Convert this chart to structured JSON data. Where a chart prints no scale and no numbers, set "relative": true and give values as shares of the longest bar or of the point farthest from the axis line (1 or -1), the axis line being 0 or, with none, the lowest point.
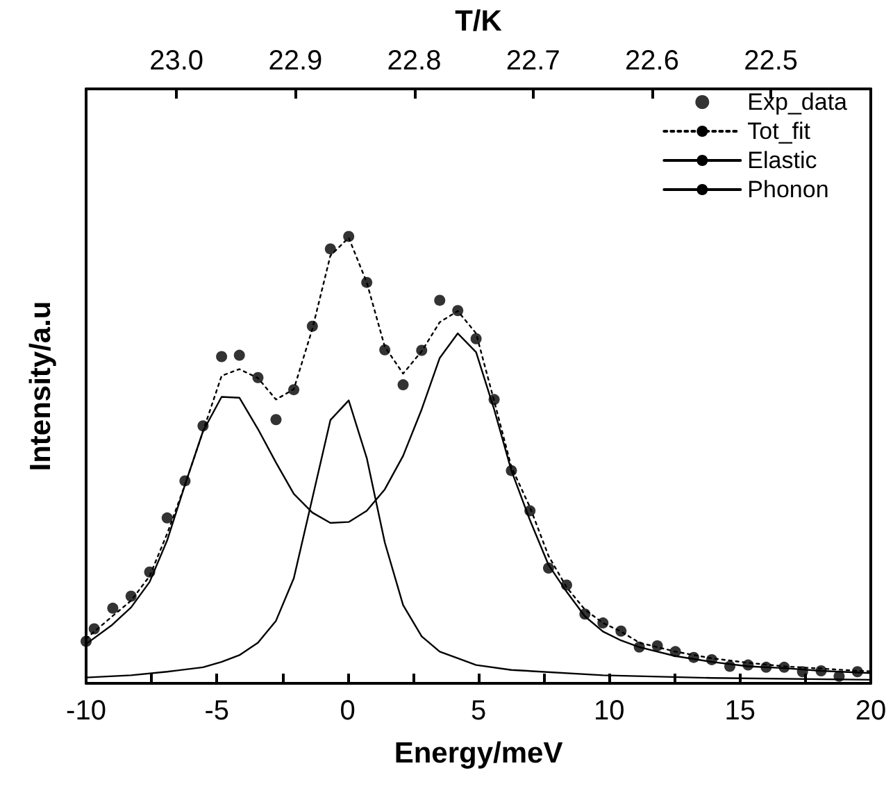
{
  "chart_data": {
    "type": "line",
    "xlabel": "Energy/meV",
    "ylabel": "Intensity/a.u",
    "x2label": "T/K",
    "relative": true,
    "legend": "top right",
    "grid": false,
    "tick_labels": "x",
    "xlim": [
      -10,
      20
    ],
    "xticks": [
      -10,
      {
        "value": -7.5,
        "label": null
      },
      -5,
      {
        "value": -2.5,
        "label": null
      },
      0,
      {
        "value": 2.5,
        "label": null
      },
      5,
      {
        "value": 7.5,
        "label": null
      },
      10,
      {
        "value": 12.5,
        "label": null
      },
      15,
      {
        "value": 17.5,
        "label": null
      },
      20
    ],
    "x2lim": [
      23.076,
      22.416
    ],
    "x2ticks": [
      {
        "value": 23.0,
        "label": "23.0"
      },
      {
        "value": 22.9,
        "label": "22.9"
      },
      {
        "value": 22.8,
        "label": "22.8"
      },
      {
        "value": 22.7,
        "label": "22.7"
      },
      {
        "value": 22.6,
        "label": "22.6"
      },
      {
        "value": 22.5,
        "label": "22.5"
      }
    ],
    "series": [
      {
        "name": "Exp_data",
        "type": "scatter",
        "marker": "circle",
        "color": "#000000",
        "x": [
          -10.0,
          -9.69,
          -8.98,
          -8.28,
          -7.57,
          -6.9,
          -6.22,
          -5.53,
          -4.82,
          -4.14,
          -3.43,
          -2.74,
          -2.06,
          -1.35,
          -0.66,
          0.04,
          0.73,
          1.42,
          2.12,
          2.83,
          3.52,
          4.21,
          4.91,
          5.6,
          6.26,
          6.97,
          7.68,
          8.37,
          9.07,
          9.76,
          10.45,
          11.15,
          11.84,
          12.53,
          13.23,
          13.92,
          14.61,
          15.31,
          16.0,
          16.69,
          17.39,
          18.1,
          18.79,
          19.49
        ],
        "values": [
          0.094,
          0.122,
          0.168,
          0.195,
          0.249,
          0.37,
          0.453,
          0.576,
          0.731,
          0.734,
          0.684,
          0.59,
          0.657,
          0.799,
          0.972,
          1.0,
          0.897,
          0.746,
          0.668,
          0.745,
          0.857,
          0.834,
          0.771,
          0.635,
          0.476,
          0.386,
          0.258,
          0.22,
          0.155,
          0.135,
          0.117,
          0.081,
          0.084,
          0.071,
          0.058,
          0.053,
          0.038,
          0.041,
          0.036,
          0.036,
          0.026,
          0.028,
          0.016,
          0.026
        ]
      },
      {
        "name": "Tot_fit",
        "type": "line",
        "marker": "none",
        "line_style": "dotted",
        "color": "#000000",
        "x": [
          -10,
          -9,
          -8.28,
          -7.57,
          -6.9,
          -6.22,
          -5.53,
          -4.82,
          -4.14,
          -3.43,
          -2.74,
          -2.06,
          -1.35,
          -0.66,
          0.04,
          0.73,
          1.42,
          2.12,
          2.83,
          3.52,
          4.21,
          4.91,
          5.6,
          6.26,
          6.97,
          7.68,
          8.37,
          9.07,
          9.76,
          10.45,
          11.15,
          12.53,
          13.92,
          15.31,
          16.69,
          18.1,
          19.49,
          20
        ],
        "values": [
          0.1,
          0.15,
          0.185,
          0.24,
          0.335,
          0.444,
          0.564,
          0.688,
          0.703,
          0.683,
          0.635,
          0.658,
          0.793,
          0.957,
          0.997,
          0.897,
          0.753,
          0.693,
          0.743,
          0.808,
          0.833,
          0.783,
          0.632,
          0.484,
          0.394,
          0.285,
          0.215,
          0.165,
          0.135,
          0.116,
          0.091,
          0.071,
          0.056,
          0.046,
          0.038,
          0.033,
          0.028,
          0.027
        ]
      },
      {
        "name": "Elastic",
        "type": "line",
        "marker": "none",
        "line_style": "solid",
        "color": "#000000",
        "x": [
          -10,
          -8.28,
          -6.9,
          -5.53,
          -4.82,
          -4.14,
          -3.43,
          -2.74,
          -2.06,
          -1.35,
          -0.66,
          0.04,
          0.73,
          1.42,
          2.12,
          2.83,
          3.52,
          4.21,
          4.91,
          6.26,
          9.76,
          13.92,
          20
        ],
        "values": [
          0.013,
          0.018,
          0.026,
          0.036,
          0.048,
          0.063,
          0.091,
          0.14,
          0.235,
          0.414,
          0.589,
          0.633,
          0.504,
          0.315,
          0.175,
          0.105,
          0.071,
          0.056,
          0.041,
          0.03,
          0.018,
          0.012,
          0.008
        ]
      },
      {
        "name": "Phonon",
        "type": "line",
        "marker": "none",
        "line_style": "solid",
        "color": "#000000",
        "x": [
          -10,
          -9,
          -8.28,
          -7.57,
          -6.9,
          -6.22,
          -5.53,
          -4.82,
          -4.14,
          -3.43,
          -2.74,
          -2.06,
          -1.35,
          -0.66,
          0.04,
          0.73,
          1.42,
          2.12,
          2.83,
          3.52,
          4.21,
          4.91,
          5.6,
          6.26,
          6.97,
          7.68,
          8.37,
          9.07,
          9.76,
          10.45,
          11.15,
          12.53,
          13.92,
          15.31,
          16.69,
          18.1,
          20
        ],
        "values": [
          0.088,
          0.131,
          0.17,
          0.227,
          0.32,
          0.444,
          0.564,
          0.641,
          0.639,
          0.569,
          0.494,
          0.424,
          0.382,
          0.359,
          0.361,
          0.386,
          0.434,
          0.509,
          0.613,
          0.728,
          0.783,
          0.741,
          0.613,
          0.476,
          0.365,
          0.265,
          0.205,
          0.15,
          0.116,
          0.096,
          0.081,
          0.061,
          0.048,
          0.038,
          0.034,
          0.028,
          0.023
        ]
      }
    ]
  }
}
